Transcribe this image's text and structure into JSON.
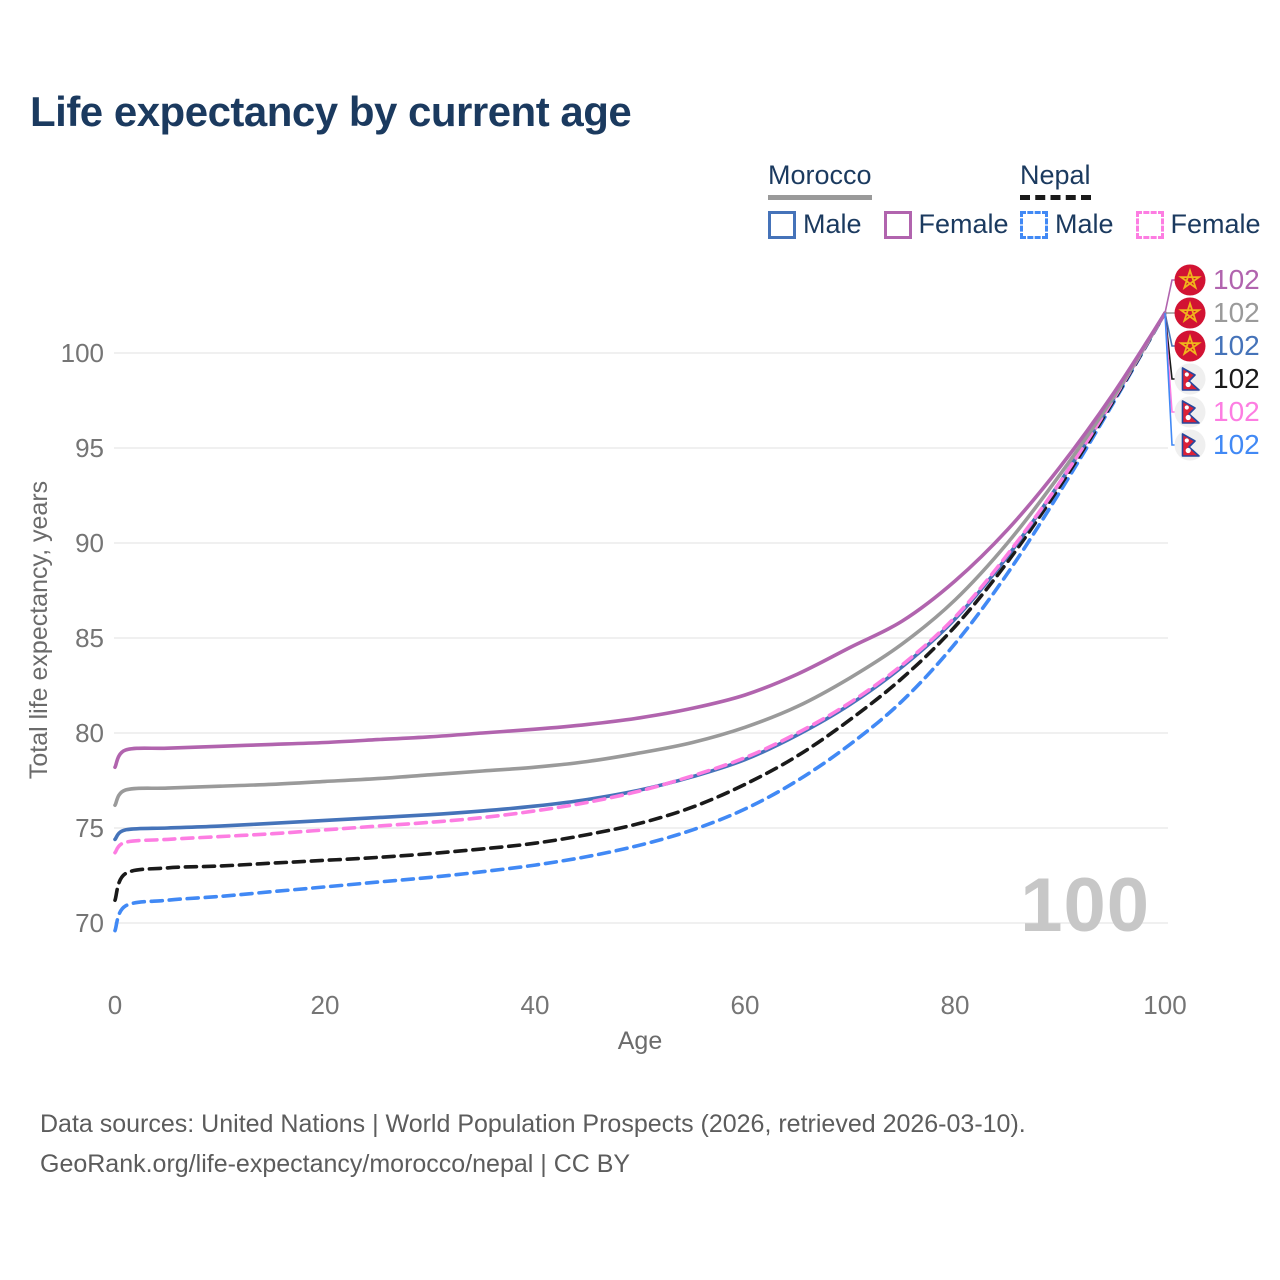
{
  "title": "Life expectancy by current age",
  "watermark_age": "100",
  "legend": {
    "groups": [
      {
        "country": "Morocco",
        "line_style": "solid",
        "underline_color": "#9a9a9a",
        "items": [
          {
            "label": "Male",
            "color": "#4573b9",
            "dashed": false
          },
          {
            "label": "Female",
            "color": "#b164ae",
            "dashed": false
          }
        ]
      },
      {
        "country": "Nepal",
        "line_style": "dashed",
        "underline_color": "#1a1a1a",
        "items": [
          {
            "label": "Male",
            "color": "#4189f5",
            "dashed": true
          },
          {
            "label": "Female",
            "color": "#fd7de2",
            "dashed": true
          }
        ]
      }
    ]
  },
  "footer": {
    "line1": "Data sources: United Nations | World Population Prospects (2026, retrieved 2026-03-10).",
    "line2": "GeoRank.org/life-expectancy/morocco/nepal | CC BY"
  },
  "colors": {
    "title": "#1b3a5f",
    "tick_label": "#757575",
    "axis_title": "#6b6b6b",
    "grid": "#ebebeb",
    "footer": "#5c5c5c",
    "watermark": "#c7c7c7"
  },
  "chart_data": {
    "type": "line",
    "title": "Life expectancy by current age",
    "xlabel": "Age",
    "ylabel": "Total life expectancy, years",
    "xlim": [
      0,
      100
    ],
    "ylim": [
      69,
      103
    ],
    "xticks": [
      0,
      20,
      40,
      60,
      80,
      100
    ],
    "yticks": [
      70,
      75,
      80,
      85,
      90,
      95,
      100
    ],
    "grid": "horizontal",
    "legend_position": "top-right",
    "x": [
      0,
      1,
      5,
      10,
      15,
      20,
      25,
      30,
      35,
      40,
      45,
      50,
      55,
      60,
      65,
      70,
      75,
      80,
      85,
      90,
      95,
      100
    ],
    "series": [
      {
        "name": "Morocco Female",
        "color": "#b164ae",
        "dashed": false,
        "flag": "morocco",
        "end_label": "102",
        "values": [
          78.2,
          79.1,
          79.2,
          79.3,
          79.4,
          79.5,
          79.65,
          79.8,
          80.0,
          80.2,
          80.45,
          80.8,
          81.3,
          82.0,
          83.1,
          84.5,
          85.9,
          88.0,
          90.7,
          94.0,
          97.8,
          102.1
        ]
      },
      {
        "name": "Morocco (both sexes)",
        "color": "#9a9a9a",
        "dashed": false,
        "flag": "morocco",
        "end_label": "102",
        "values": [
          76.2,
          77.0,
          77.1,
          77.2,
          77.3,
          77.45,
          77.6,
          77.8,
          78.0,
          78.2,
          78.5,
          78.95,
          79.5,
          80.3,
          81.4,
          82.9,
          84.7,
          87.0,
          90.0,
          93.6,
          97.6,
          102.1
        ]
      },
      {
        "name": "Morocco Male",
        "color": "#4573b9",
        "dashed": false,
        "flag": "morocco",
        "end_label": "102",
        "values": [
          74.4,
          74.9,
          75.0,
          75.1,
          75.25,
          75.4,
          75.55,
          75.7,
          75.9,
          76.15,
          76.5,
          77.0,
          77.7,
          78.6,
          79.9,
          81.5,
          83.5,
          86.0,
          89.3,
          93.2,
          97.5,
          102.1
        ]
      },
      {
        "name": "Nepal (both sexes)",
        "color": "#1a1a1a",
        "dashed": true,
        "flag": "nepal",
        "end_label": "102",
        "values": [
          71.2,
          72.6,
          72.9,
          73.0,
          73.15,
          73.3,
          73.45,
          73.65,
          73.9,
          74.2,
          74.65,
          75.25,
          76.1,
          77.3,
          78.8,
          80.7,
          82.9,
          85.6,
          89.0,
          93.0,
          97.4,
          102.1
        ]
      },
      {
        "name": "Nepal Female",
        "color": "#fd7de2",
        "dashed": true,
        "flag": "nepal",
        "end_label": "102",
        "values": [
          73.7,
          74.25,
          74.4,
          74.55,
          74.7,
          74.9,
          75.1,
          75.3,
          75.55,
          75.9,
          76.35,
          76.95,
          77.75,
          78.7,
          80.0,
          81.6,
          83.6,
          86.1,
          89.4,
          93.2,
          97.5,
          102.1
        ]
      },
      {
        "name": "Nepal Male",
        "color": "#4189f5",
        "dashed": true,
        "flag": "nepal",
        "end_label": "102",
        "values": [
          69.6,
          70.9,
          71.2,
          71.4,
          71.65,
          71.9,
          72.15,
          72.4,
          72.7,
          73.05,
          73.5,
          74.1,
          74.9,
          76.0,
          77.5,
          79.4,
          81.7,
          84.7,
          88.4,
          92.7,
          97.3,
          102.1
        ]
      }
    ]
  }
}
